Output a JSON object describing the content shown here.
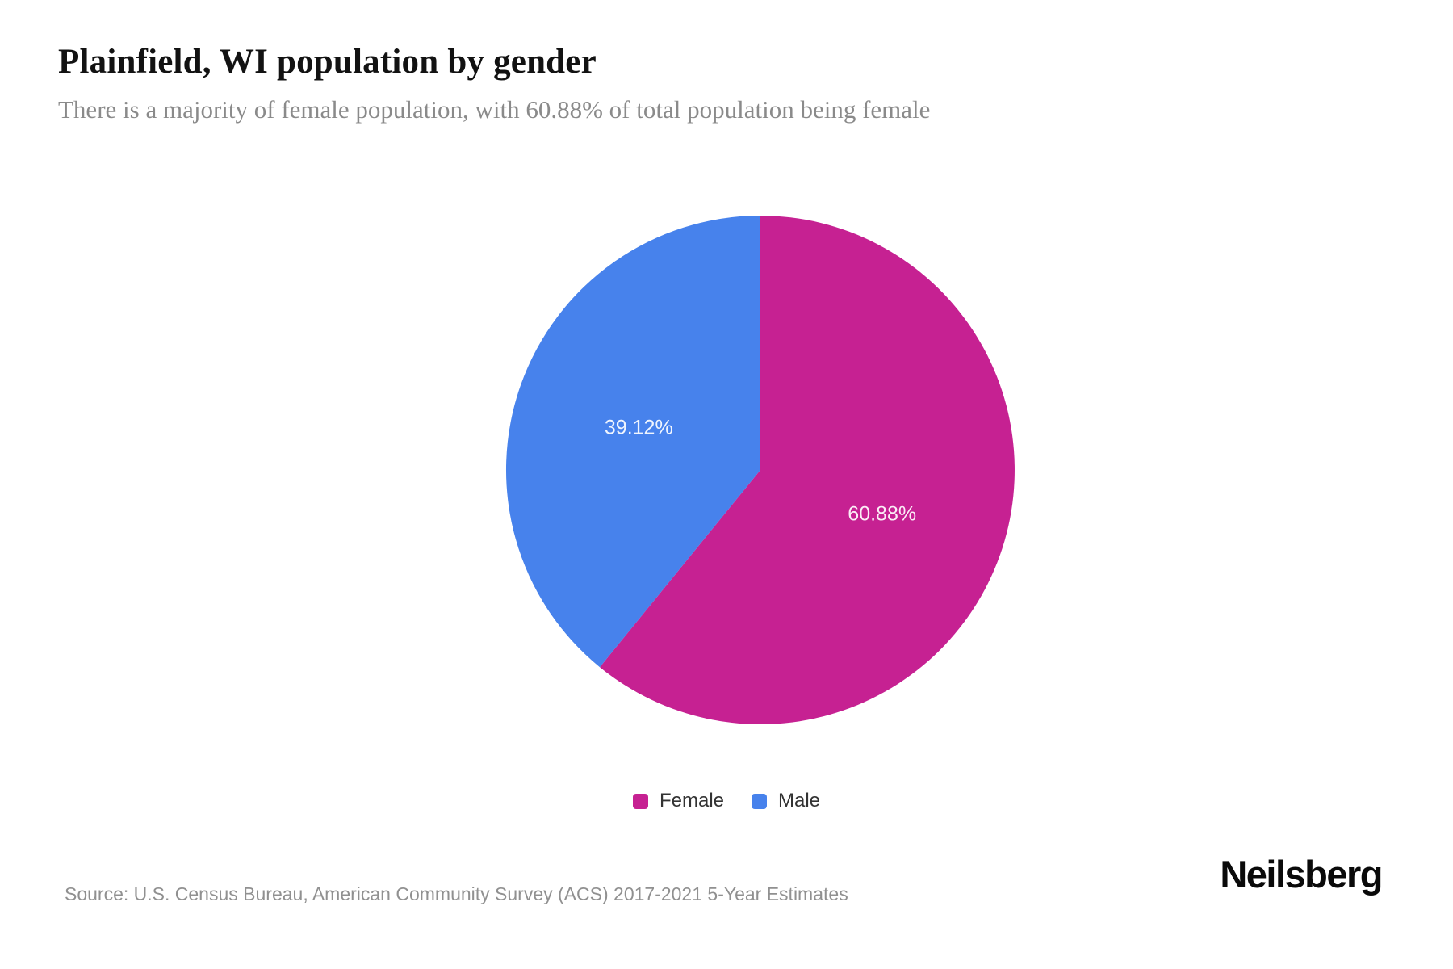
{
  "chart_data": {
    "type": "pie",
    "title": "Plainfield, WI population by gender",
    "subtitle": "There is a majority of female population, with 60.88% of total population being female",
    "categories": [
      "Female",
      "Male"
    ],
    "values": [
      60.88,
      39.12
    ],
    "series": [
      {
        "name": "Female",
        "value": 60.88,
        "label": "60.88%",
        "color": "#c62192"
      },
      {
        "name": "Male",
        "value": 39.12,
        "label": "39.12%",
        "color": "#4782ec"
      }
    ],
    "start_angle_deg": 0,
    "direction": "clockwise",
    "legend_position": "bottom",
    "label_color": "#ffffff"
  },
  "footer": {
    "source": "Source: U.S. Census Bureau, American Community Survey (ACS) 2017-2021 5-Year Estimates",
    "brand": "Neilsberg"
  }
}
